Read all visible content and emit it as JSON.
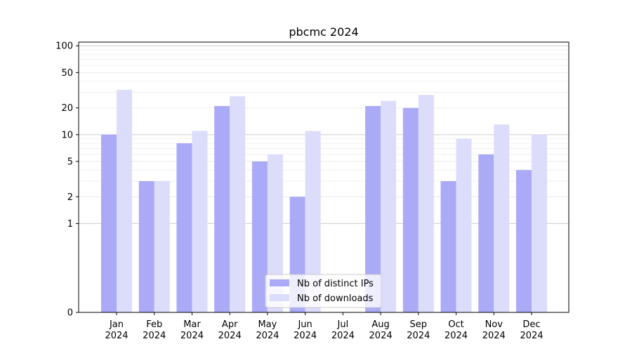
{
  "chart_data": {
    "type": "bar",
    "title": "pbcmc 2024",
    "xlabel": "",
    "ylabel": "",
    "yscale": "symlog",
    "ylim": [
      0,
      110
    ],
    "y_ticks": [
      0,
      1,
      2,
      5,
      10,
      20,
      50,
      100
    ],
    "y_tick_labels": [
      "0",
      "1",
      "2",
      "5",
      "10",
      "20",
      "50",
      "100"
    ],
    "categories": [
      [
        "Jan",
        "2024"
      ],
      [
        "Feb",
        "2024"
      ],
      [
        "Mar",
        "2024"
      ],
      [
        "Apr",
        "2024"
      ],
      [
        "May",
        "2024"
      ],
      [
        "Jun",
        "2024"
      ],
      [
        "Jul",
        "2024"
      ],
      [
        "Aug",
        "2024"
      ],
      [
        "Sep",
        "2024"
      ],
      [
        "Oct",
        "2024"
      ],
      [
        "Nov",
        "2024"
      ],
      [
        "Dec",
        "2024"
      ]
    ],
    "series": [
      {
        "name": "Nb of distinct IPs",
        "color": "#aaaaf7",
        "values": [
          10,
          3,
          8,
          21,
          5,
          2,
          0,
          21,
          20,
          3,
          6,
          4
        ]
      },
      {
        "name": "Nb of downloads",
        "color": "#dcdcfb",
        "values": [
          32,
          3,
          11,
          27,
          6,
          11,
          0,
          24,
          28,
          9,
          13,
          10
        ]
      }
    ],
    "grid": true,
    "legend_position": "lower-center"
  }
}
